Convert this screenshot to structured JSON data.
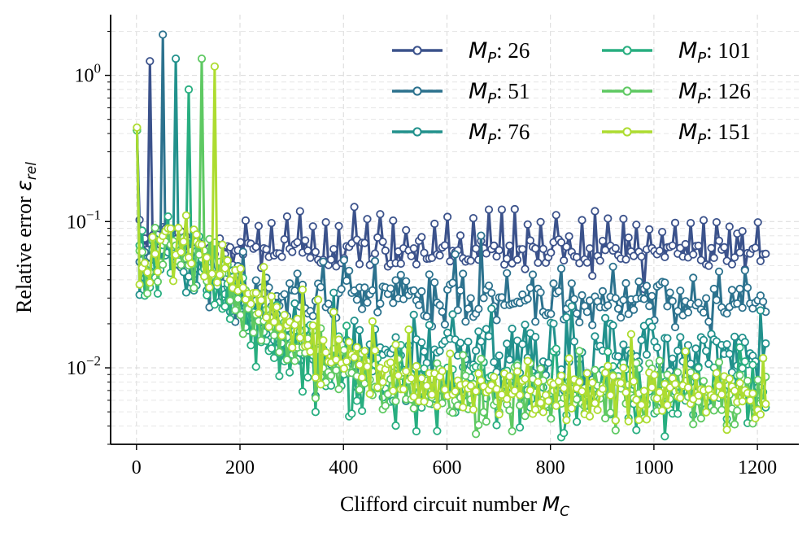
{
  "chart_data": {
    "type": "line",
    "title": "",
    "xlabel": "Clifford circuit number",
    "xlabel_math": "M",
    "xlabel_sub": "C",
    "ylabel": "Relative error",
    "ylabel_math": "ε",
    "ylabel_sub": "rel",
    "x_scale": "linear",
    "y_scale": "log",
    "xlim": [
      -50,
      1280
    ],
    "ylim": [
      0.003,
      2.6
    ],
    "x_ticks": [
      0,
      200,
      400,
      600,
      800,
      1000,
      1200
    ],
    "x_tick_labels": [
      "0",
      "200",
      "400",
      "600",
      "800",
      "1000",
      "1200"
    ],
    "y_ticks": [
      0.01,
      0.1,
      1
    ],
    "y_tick_labels_base": [
      "10",
      "10",
      "10"
    ],
    "y_tick_labels_exp": [
      "−2",
      "−1",
      "0"
    ],
    "grid": true,
    "grid_style": "dashed",
    "legend_position": "top-right",
    "legend_columns": 2,
    "legend_prefix": "M",
    "legend_prefix_sub": "P",
    "x_start": 1,
    "x_step": 5,
    "x_end": 1216,
    "series": [
      {
        "name": "26",
        "color": "#3b528b",
        "spikes": [
          [
            26,
            1.25
          ]
        ],
        "key_points": [
          [
            1,
            0.42
          ],
          [
            6,
            0.07
          ],
          [
            36,
            0.08
          ],
          [
            80,
            0.07
          ],
          [
            150,
            0.065
          ],
          [
            250,
            0.062
          ],
          [
            1216,
            0.06
          ]
        ],
        "noise_decades": 0.06
      },
      {
        "name": "51",
        "color": "#2c728e",
        "spikes": [
          [
            51,
            1.9
          ]
        ],
        "key_points": [
          [
            1,
            0.42
          ],
          [
            6,
            0.06
          ],
          [
            60,
            0.065
          ],
          [
            120,
            0.05
          ],
          [
            200,
            0.035
          ],
          [
            260,
            0.029
          ],
          [
            1216,
            0.028
          ]
        ],
        "noise_decades": 0.08
      },
      {
        "name": "76",
        "color": "#21918c",
        "spikes": [
          [
            76,
            1.3
          ]
        ],
        "key_points": [
          [
            1,
            0.42
          ],
          [
            6,
            0.05
          ],
          [
            60,
            0.06
          ],
          [
            120,
            0.05
          ],
          [
            170,
            0.035
          ],
          [
            230,
            0.02
          ],
          [
            300,
            0.015
          ],
          [
            400,
            0.013
          ],
          [
            500,
            0.012
          ],
          [
            1216,
            0.012
          ]
        ],
        "noise_decades": 0.12
      },
      {
        "name": "101",
        "color": "#28ae80",
        "spikes": [
          [
            101,
            0.8
          ]
        ],
        "key_points": [
          [
            1,
            0.42
          ],
          [
            6,
            0.05
          ],
          [
            60,
            0.07
          ],
          [
            120,
            0.05
          ],
          [
            170,
            0.035
          ],
          [
            230,
            0.018
          ],
          [
            300,
            0.012
          ],
          [
            400,
            0.009
          ],
          [
            500,
            0.007
          ],
          [
            1216,
            0.0065
          ]
        ],
        "noise_decades": 0.12
      },
      {
        "name": "126",
        "color": "#5ec962",
        "spikes": [
          [
            126,
            1.3
          ]
        ],
        "key_points": [
          [
            1,
            0.42
          ],
          [
            6,
            0.05
          ],
          [
            60,
            0.07
          ],
          [
            130,
            0.06
          ],
          [
            180,
            0.04
          ],
          [
            230,
            0.022
          ],
          [
            300,
            0.015
          ],
          [
            400,
            0.01
          ],
          [
            500,
            0.0075
          ],
          [
            600,
            0.0065
          ],
          [
            1216,
            0.0062
          ]
        ],
        "noise_decades": 0.11
      },
      {
        "name": "151",
        "color": "#addc30",
        "spikes": [
          [
            151,
            1.15
          ]
        ],
        "key_points": [
          [
            1,
            0.44
          ],
          [
            6,
            0.05
          ],
          [
            60,
            0.075
          ],
          [
            140,
            0.06
          ],
          [
            170,
            0.055
          ],
          [
            190,
            0.045
          ],
          [
            230,
            0.03
          ],
          [
            300,
            0.018
          ],
          [
            400,
            0.012
          ],
          [
            500,
            0.0085
          ],
          [
            600,
            0.007
          ],
          [
            1216,
            0.0065
          ]
        ],
        "noise_decades": 0.1
      }
    ]
  }
}
